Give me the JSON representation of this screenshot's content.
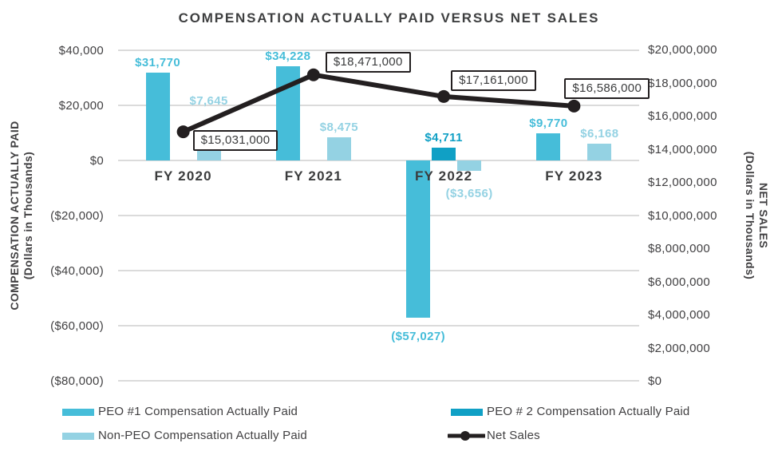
{
  "chart_data": {
    "type": "combo-bar-line",
    "title": "COMPENSATION ACTUALLY PAID VERSUS NET SALES",
    "categories": [
      "FY 2020",
      "FY 2021",
      "FY 2022",
      "FY 2023"
    ],
    "series": [
      {
        "name": "PEO #1 Compensation Actually Paid",
        "type": "bar",
        "axis": "left",
        "color": "#46bdd9",
        "values": [
          31770,
          34228,
          -57027,
          9770
        ],
        "labels": [
          "$31,770",
          "$34,228",
          "($57,027)",
          "$9,770"
        ],
        "label_dy": [
          0,
          0,
          5,
          0
        ]
      },
      {
        "name": "PEO # 2 Compensation Actually Paid",
        "type": "bar",
        "axis": "left",
        "color": "#10a0c5",
        "values": [
          null,
          null,
          4711,
          null
        ],
        "labels": [
          null,
          null,
          "$4,711",
          null
        ],
        "label_dy": [
          0,
          0,
          0,
          0
        ]
      },
      {
        "name": "Non-PEO Compensation Actually Paid",
        "type": "bar",
        "axis": "left",
        "color": "#94d2e3",
        "values": [
          7645,
          8475,
          -3656,
          6168
        ],
        "labels": [
          "$7,645",
          "$8,475",
          "($3,656)",
          "$6,168"
        ],
        "label_dy": [
          -36,
          0,
          10,
          0
        ]
      },
      {
        "name": "Net Sales",
        "type": "line",
        "axis": "right",
        "color": "#231f20",
        "values": [
          15031000,
          18471000,
          17161000,
          16586000
        ],
        "labels": [
          "$15,031,000",
          "$18,471,000",
          "$17,161,000",
          "$16,586,000"
        ],
        "callout_offset": [
          [
            12,
            -2
          ],
          [
            15,
            -29
          ],
          [
            9,
            -33
          ],
          [
            -12,
            -35
          ]
        ]
      }
    ],
    "left_axis": {
      "title": "COMPENSATION ACTUALLY PAID",
      "subtitle": "(Dollars in Thousands)",
      "min": -80000,
      "max": 40000,
      "step": 20000,
      "tick_labels": [
        "$40,000",
        "$20,000",
        "$0",
        "($20,000)",
        "($40,000)",
        "($60,000)",
        "($80,000)"
      ]
    },
    "right_axis": {
      "title": "NET SALES",
      "subtitle": "(Dollars in Thousands)",
      "min": 0,
      "max": 20000000,
      "step": 2000000,
      "tick_labels": [
        "$20,000,000",
        "$18,000,000",
        "$16,000,000",
        "$14,000,000",
        "$12,000,000",
        "$10,000,000",
        "$8,000,000",
        "$6,000,000",
        "$4,000,000",
        "$2,000,000",
        "$0"
      ]
    },
    "legend": {
      "position": "bottom",
      "items": [
        {
          "label": "PEO #1 Compensation Actually Paid",
          "swatch": "bar",
          "color": "#46bdd9"
        },
        {
          "label": "PEO # 2 Compensation Actually Paid",
          "swatch": "bar",
          "color": "#10a0c5"
        },
        {
          "label": "Non-PEO Compensation Actually Paid",
          "swatch": "bar",
          "color": "#94d2e3"
        },
        {
          "label": "Net Sales",
          "swatch": "line-dot",
          "color": "#231f20"
        }
      ]
    },
    "grid": true
  }
}
